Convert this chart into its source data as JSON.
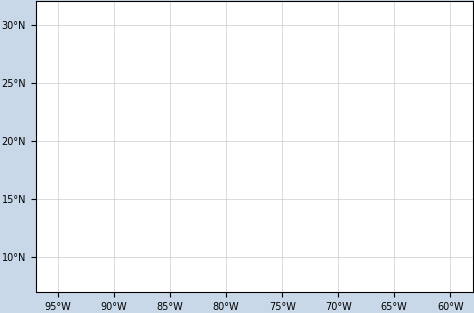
{
  "title": "",
  "lon_min": -97,
  "lon_max": -58,
  "lat_min": 7,
  "lat_max": 32,
  "xticks": [
    -95,
    -90,
    -85,
    -80,
    -75,
    -70,
    -65,
    -60
  ],
  "yticks": [
    10,
    15,
    20,
    25,
    30
  ],
  "ocean_color": "#FFFFFF",
  "land_color": "#AAAAAA",
  "background_color": "#D8E8F0",
  "grid_color": "#CCCCCC",
  "suitability_colors": {
    "low": "#4444AA",
    "medium": "#88CCAA",
    "high": "#DDEE00"
  },
  "figsize": [
    4.74,
    3.13
  ],
  "dpi": 100,
  "tick_fontsize": 7,
  "outer_bg": "#C8D8E8"
}
